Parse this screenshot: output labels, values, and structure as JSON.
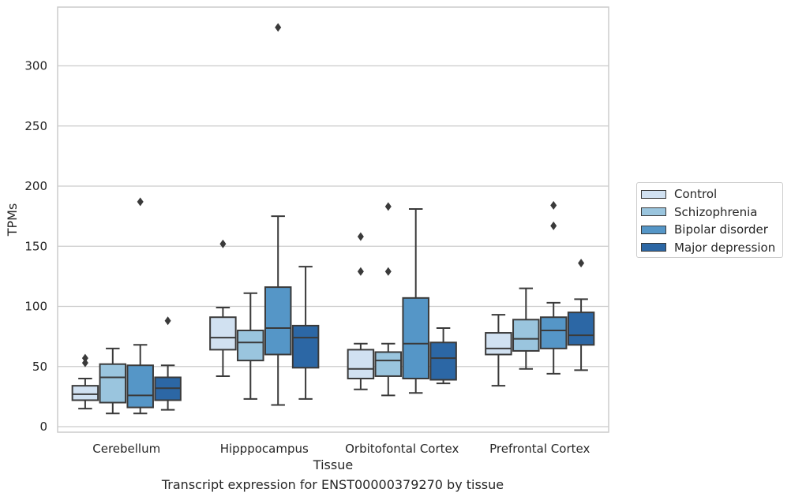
{
  "chart_data": {
    "type": "box",
    "title": "Transcript expression for ENST00000379270 by tissue",
    "xlabel": "Tissue",
    "ylabel": "TPMs",
    "ylim": [
      -5,
      348
    ],
    "yticks": [
      0,
      50,
      100,
      150,
      200,
      250,
      300
    ],
    "grid": "horizontal",
    "legend_position": "right",
    "categories": [
      "Cerebellum",
      "Hipppocampus",
      "Orbitofontal Cortex",
      "Prefrontal Cortex"
    ],
    "series": [
      {
        "name": "Control",
        "color": "#d1e1f1",
        "boxes": [
          {
            "whisker_low": 15,
            "q1": 22,
            "median": 27,
            "q3": 34,
            "whisker_high": 40,
            "outliers": [
              53,
              57
            ]
          },
          {
            "whisker_low": 42,
            "q1": 64,
            "median": 74,
            "q3": 91,
            "whisker_high": 99,
            "outliers": [
              152
            ]
          },
          {
            "whisker_low": 31,
            "q1": 40,
            "median": 48,
            "q3": 64,
            "whisker_high": 69,
            "outliers": [
              129,
              158
            ]
          },
          {
            "whisker_low": 34,
            "q1": 60,
            "median": 65,
            "q3": 78,
            "whisker_high": 93,
            "outliers": []
          }
        ]
      },
      {
        "name": "Schizophrenia",
        "color": "#9ac5de",
        "boxes": [
          {
            "whisker_low": 11,
            "q1": 20,
            "median": 41,
            "q3": 52,
            "whisker_high": 65,
            "outliers": []
          },
          {
            "whisker_low": 23,
            "q1": 55,
            "median": 70,
            "q3": 80,
            "whisker_high": 111,
            "outliers": []
          },
          {
            "whisker_low": 26,
            "q1": 42,
            "median": 55,
            "q3": 62,
            "whisker_high": 69,
            "outliers": [
              129,
              183
            ]
          },
          {
            "whisker_low": 48,
            "q1": 63,
            "median": 73,
            "q3": 89,
            "whisker_high": 115,
            "outliers": []
          }
        ]
      },
      {
        "name": "Bipolar disorder",
        "color": "#5596c7",
        "boxes": [
          {
            "whisker_low": 11,
            "q1": 16,
            "median": 26,
            "q3": 51,
            "whisker_high": 68,
            "outliers": [
              187
            ]
          },
          {
            "whisker_low": 18,
            "q1": 60,
            "median": 82,
            "q3": 116,
            "whisker_high": 175,
            "outliers": [
              332
            ]
          },
          {
            "whisker_low": 28,
            "q1": 40,
            "median": 69,
            "q3": 107,
            "whisker_high": 181,
            "outliers": []
          },
          {
            "whisker_low": 44,
            "q1": 65,
            "median": 80,
            "q3": 91,
            "whisker_high": 103,
            "outliers": [
              167,
              184
            ]
          }
        ]
      },
      {
        "name": "Major depression",
        "color": "#2c67a5",
        "boxes": [
          {
            "whisker_low": 14,
            "q1": 22,
            "median": 32,
            "q3": 41,
            "whisker_high": 51,
            "outliers": [
              88
            ]
          },
          {
            "whisker_low": 23,
            "q1": 49,
            "median": 74,
            "q3": 84,
            "whisker_high": 133,
            "outliers": []
          },
          {
            "whisker_low": 36,
            "q1": 39,
            "median": 57,
            "q3": 70,
            "whisker_high": 82,
            "outliers": []
          },
          {
            "whisker_low": 47,
            "q1": 68,
            "median": 76,
            "q3": 95,
            "whisker_high": 106,
            "outliers": [
              136
            ]
          }
        ]
      }
    ]
  }
}
